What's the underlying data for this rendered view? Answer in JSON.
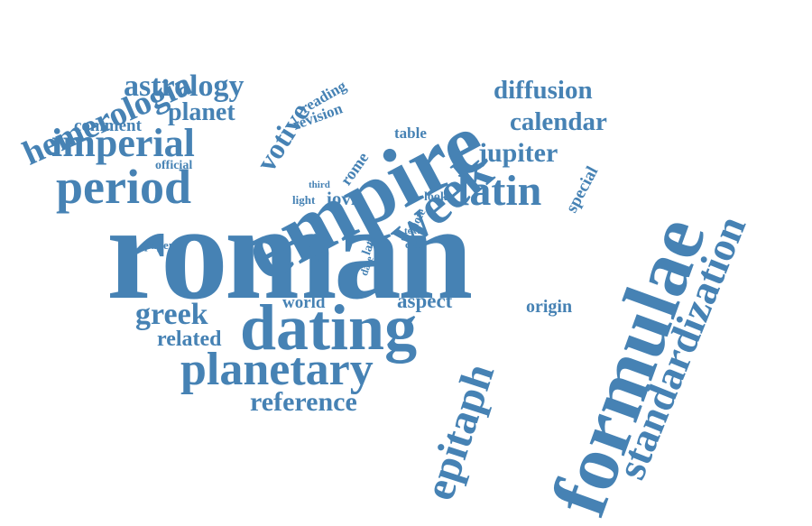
{
  "word_cloud": {
    "color": "#4682b4",
    "words": [
      {
        "text": "roman",
        "size": 9
      },
      {
        "text": "empire",
        "size": 6
      },
      {
        "text": "formulae",
        "size": 6
      },
      {
        "text": "dating",
        "size": 5
      },
      {
        "text": "week",
        "size": 5
      },
      {
        "text": "standardization",
        "size": 4
      },
      {
        "text": "epitaph",
        "size": 4
      },
      {
        "text": "planetary",
        "size": 4
      },
      {
        "text": "period",
        "size": 4
      },
      {
        "text": "imperial",
        "size": 4
      },
      {
        "text": "hemerologia",
        "size": 4
      },
      {
        "text": "latin",
        "size": 4
      },
      {
        "text": "votive",
        "size": 3
      },
      {
        "text": "astrology",
        "size": 3
      },
      {
        "text": "greek",
        "size": 3
      },
      {
        "text": "reference",
        "size": 3
      },
      {
        "text": "diffusion",
        "size": 3
      },
      {
        "text": "calendar",
        "size": 3
      },
      {
        "text": "jupiter",
        "size": 3
      },
      {
        "text": "planet",
        "size": 3
      },
      {
        "text": "related",
        "size": 2
      },
      {
        "text": "aspect",
        "size": 2
      },
      {
        "text": "comment",
        "size": 2
      },
      {
        "text": "iovis",
        "size": 2
      },
      {
        "text": "special",
        "size": 2
      },
      {
        "text": "origin",
        "size": 2
      },
      {
        "text": "world",
        "size": 2
      },
      {
        "text": "reading",
        "size": 2
      },
      {
        "text": "revision",
        "size": 2
      },
      {
        "text": "table",
        "size": 2
      },
      {
        "text": "rome",
        "size": 2
      },
      {
        "text": "official",
        "size": 1
      },
      {
        "text": "third",
        "size": 1
      },
      {
        "text": "light",
        "size": 1
      },
      {
        "text": "look",
        "size": 1
      },
      {
        "text": "note",
        "size": 1
      },
      {
        "text": "text",
        "size": 1
      },
      {
        "text": "cult",
        "size": 1
      },
      {
        "text": "paper",
        "size": 1
      },
      {
        "text": "die",
        "size": 1
      },
      {
        "text": "day",
        "size": 1
      },
      {
        "text": "late",
        "size": 1
      },
      {
        "text": "date",
        "size": 1
      }
    ]
  }
}
